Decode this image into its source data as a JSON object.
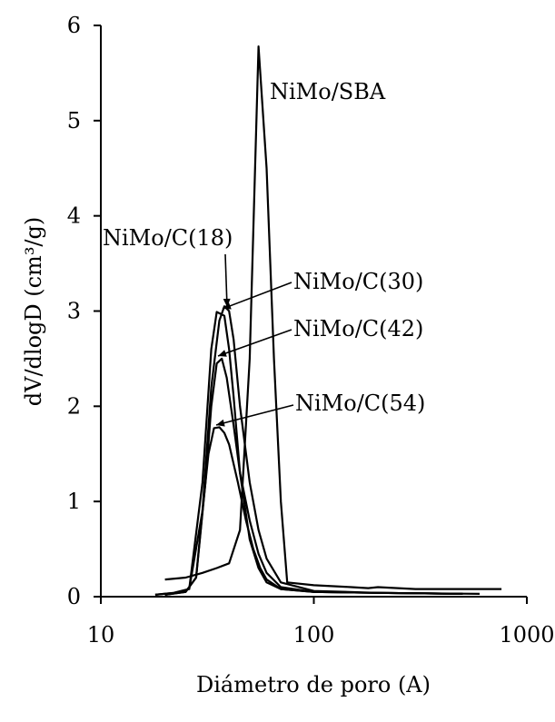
{
  "chart_data": {
    "type": "line",
    "xlabel": "Diámetro de poro (A)",
    "ylabel": "dV/dlogD (cm³/g)",
    "xscale": "log",
    "xlim": [
      10,
      1000
    ],
    "ylim": [
      0,
      6
    ],
    "x_ticks": [
      "10",
      "100",
      "1000"
    ],
    "y_ticks": [
      "0",
      "1",
      "2",
      "3",
      "4",
      "5",
      "6"
    ],
    "grid": false,
    "legend": "none",
    "series": [
      {
        "name": "NiMo/SBA",
        "x": [
          20,
          25,
          30,
          35,
          40,
          45,
          50,
          55,
          60,
          65,
          70,
          75,
          100,
          150,
          180,
          200,
          300,
          500,
          760
        ],
        "y": [
          0.18,
          0.2,
          0.25,
          0.3,
          0.35,
          0.7,
          2.5,
          5.78,
          4.5,
          2.5,
          1.0,
          0.15,
          0.12,
          0.1,
          0.09,
          0.1,
          0.08,
          0.08,
          0.08
        ]
      },
      {
        "name": "NiMo/C(18)",
        "x": [
          18,
          22,
          26,
          30,
          33,
          35,
          38,
          40,
          42,
          45,
          50,
          55,
          60,
          70,
          100,
          200,
          600
        ],
        "y": [
          0.02,
          0.04,
          0.08,
          1.2,
          2.6,
          2.99,
          2.95,
          2.6,
          2.1,
          1.3,
          0.6,
          0.3,
          0.15,
          0.08,
          0.05,
          0.04,
          0.03
        ]
      },
      {
        "name": "NiMo/C(30)",
        "x": [
          18,
          22,
          26,
          30,
          33,
          36,
          38,
          40,
          42,
          45,
          50,
          55,
          60,
          70,
          100,
          200,
          500
        ],
        "y": [
          0.02,
          0.04,
          0.08,
          0.9,
          2.2,
          2.9,
          3.05,
          3.0,
          2.7,
          2.0,
          1.2,
          0.7,
          0.4,
          0.15,
          0.06,
          0.04,
          0.03
        ]
      },
      {
        "name": "NiMo/C(42)",
        "x": [
          20,
          25,
          28,
          31,
          33,
          35,
          37,
          39,
          42,
          45,
          50,
          55,
          60,
          70,
          100,
          200,
          500
        ],
        "y": [
          0.02,
          0.05,
          0.2,
          1.2,
          2.0,
          2.45,
          2.5,
          2.3,
          1.8,
          1.3,
          0.8,
          0.45,
          0.25,
          0.1,
          0.05,
          0.04,
          0.03
        ]
      },
      {
        "name": "NiMo/C(54)",
        "x": [
          20,
          25,
          28,
          30,
          32,
          34,
          36,
          38,
          40,
          44,
          48,
          52,
          56,
          60,
          70,
          100,
          200,
          500
        ],
        "y": [
          0.02,
          0.05,
          0.2,
          0.9,
          1.5,
          1.77,
          1.78,
          1.72,
          1.6,
          1.2,
          0.8,
          0.5,
          0.3,
          0.18,
          0.08,
          0.05,
          0.04,
          0.03
        ]
      }
    ],
    "annotations": [
      {
        "text": "NiMo/SBA",
        "series": "NiMo/SBA"
      },
      {
        "text": "NiMo/C(18)",
        "series": "NiMo/C(18)"
      },
      {
        "text": "NiMo/C(30)",
        "series": "NiMo/C(30)"
      },
      {
        "text": "NiMo/C(42)",
        "series": "NiMo/C(42)"
      },
      {
        "text": "NiMo/C(54)",
        "series": "NiMo/C(54)"
      }
    ]
  }
}
